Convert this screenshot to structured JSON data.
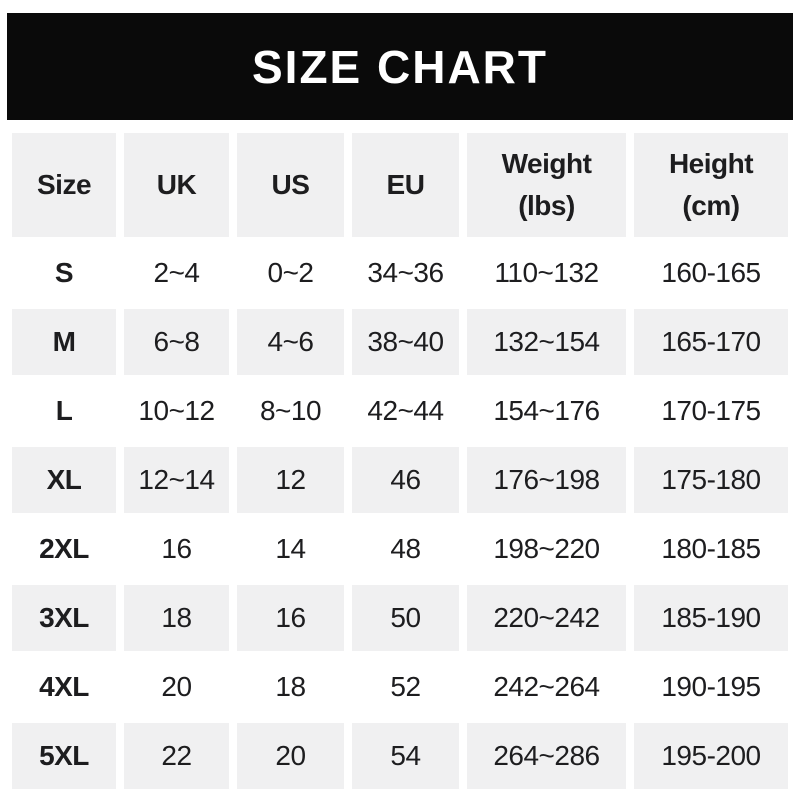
{
  "banner": {
    "title": "SIZE CHART",
    "background_color": "#0a0a0a",
    "text_color": "#ffffff"
  },
  "table": {
    "stripe_color": "#f0f0f1",
    "text_color": "#1d1d1f"
  },
  "chart_data": {
    "type": "table",
    "title": "SIZE CHART",
    "columns": [
      "Size",
      "UK",
      "US",
      "EU",
      "Weight\n(lbs)",
      "Height\n(cm)"
    ],
    "rows": [
      [
        "S",
        "2~4",
        "0~2",
        "34~36",
        "110~132",
        "160-165"
      ],
      [
        "M",
        "6~8",
        "4~6",
        "38~40",
        "132~154",
        "165-170"
      ],
      [
        "L",
        "10~12",
        "8~10",
        "42~44",
        "154~176",
        "170-175"
      ],
      [
        "XL",
        "12~14",
        "12",
        "46",
        "176~198",
        "175-180"
      ],
      [
        "2XL",
        "16",
        "14",
        "48",
        "198~220",
        "180-185"
      ],
      [
        "3XL",
        "18",
        "16",
        "50",
        "220~242",
        "185-190"
      ],
      [
        "4XL",
        "20",
        "18",
        "52",
        "242~264",
        "190-195"
      ],
      [
        "5XL",
        "22",
        "20",
        "54",
        "264~286",
        "195-200"
      ]
    ],
    "layout": {
      "header_striped": true,
      "alternating_rows": "odd rows striped (M, XL, 3XL, 5XL)",
      "grid": "off"
    }
  }
}
